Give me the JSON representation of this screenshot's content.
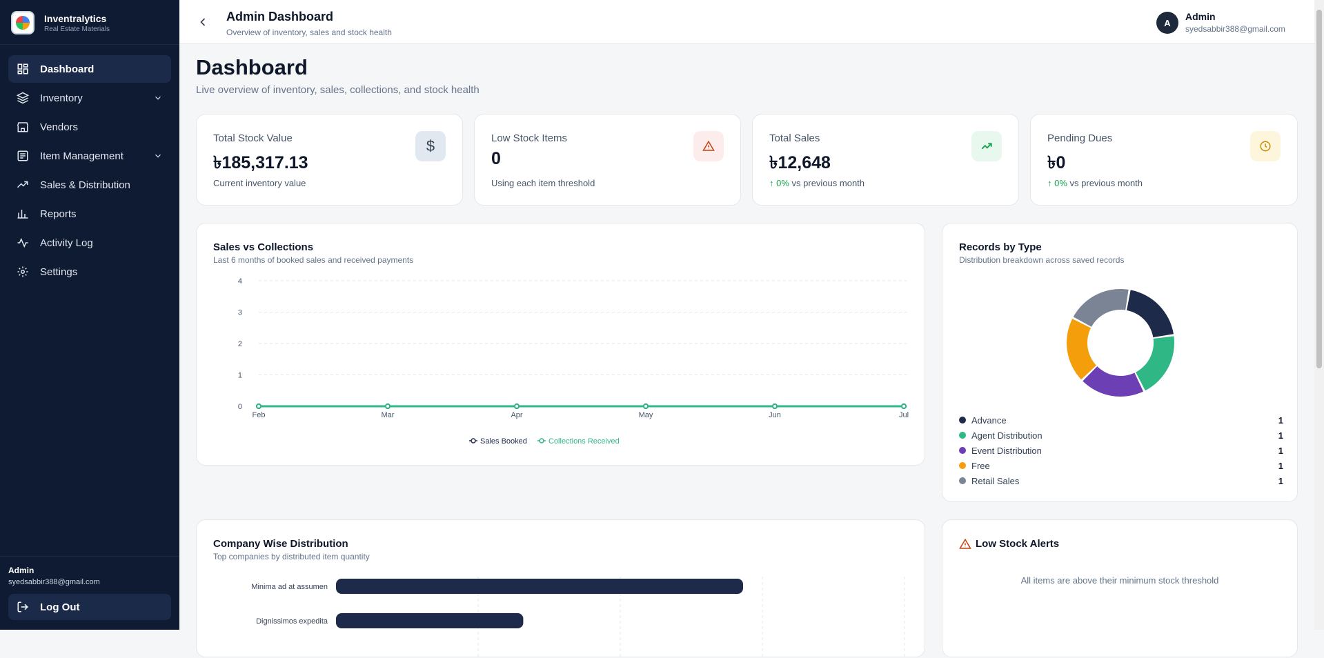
{
  "brand": {
    "name": "Inventralytics",
    "sub": "Real Estate Materials"
  },
  "nav": [
    {
      "label": "Dashboard",
      "icon": "dashboard-icon",
      "active": true
    },
    {
      "label": "Inventory",
      "icon": "layers-icon",
      "chevron": true
    },
    {
      "label": "Vendors",
      "icon": "store-icon"
    },
    {
      "label": "Item Management",
      "icon": "list-icon",
      "chevron": true
    },
    {
      "label": "Sales & Distribution",
      "icon": "trending-icon"
    },
    {
      "label": "Reports",
      "icon": "bar-chart-icon"
    },
    {
      "label": "Activity Log",
      "icon": "activity-icon"
    },
    {
      "label": "Settings",
      "icon": "gear-icon"
    }
  ],
  "sidebar_user": {
    "name": "Admin",
    "email": "syedsabbir388@gmail.com",
    "logout": "Log Out"
  },
  "topbar": {
    "title": "Admin Dashboard",
    "subtitle": "Overview of inventory, sales and stock health",
    "avatar": "A",
    "user_name": "Admin",
    "user_email": "syedsabbir388@gmail.com"
  },
  "page": {
    "title": "Dashboard",
    "subtitle": "Live overview of inventory, sales, collections, and stock health"
  },
  "stats": [
    {
      "label": "Total Stock Value",
      "value": "৳185,317.13",
      "note": "Current inventory value",
      "icon": "dollar-icon",
      "color": "#334155"
    },
    {
      "label": "Low Stock Items",
      "value": "0",
      "note": "Using each item threshold",
      "icon": "warning-icon",
      "color": "#c2410c"
    },
    {
      "label": "Total Sales",
      "value": "৳12,648",
      "note_up": "↑ 0%",
      "note": "vs previous month",
      "icon": "trending-up-icon",
      "color": "#16a34a"
    },
    {
      "label": "Pending Dues",
      "value": "৳0",
      "note_up": "↑ 0%",
      "note": "vs previous month",
      "icon": "clock-icon",
      "color": "#ca8a04"
    }
  ],
  "sales_chart": {
    "title": "Sales vs Collections",
    "subtitle": "Last 6 months of booked sales and received payments",
    "legend": [
      "Sales Booked",
      "Collections Received"
    ]
  },
  "records": {
    "title": "Records by Type",
    "subtitle": "Distribution breakdown across saved records",
    "items": [
      {
        "name": "Advance",
        "count": "1",
        "color": "#1e2a4a"
      },
      {
        "name": "Agent Distribution",
        "count": "1",
        "color": "#2fb886"
      },
      {
        "name": "Event Distribution",
        "count": "1",
        "color": "#6d3fb5"
      },
      {
        "name": "Free",
        "count": "1",
        "color": "#f59e0b"
      },
      {
        "name": "Retail Sales",
        "count": "1",
        "color": "#7b8494"
      }
    ]
  },
  "company": {
    "title": "Company Wise Distribution",
    "subtitle": "Top companies by distributed item quantity"
  },
  "alerts": {
    "title": "Low Stock Alerts",
    "message": "All items are above their minimum stock threshold"
  },
  "chart_data": [
    {
      "type": "line",
      "x": [
        "Feb",
        "Mar",
        "Apr",
        "May",
        "Jun",
        "Jul"
      ],
      "ylim": [
        0,
        4
      ],
      "yticks": [
        "0",
        "1",
        "2",
        "3",
        "4"
      ],
      "series": [
        {
          "name": "Sales Booked",
          "values": [
            0,
            0,
            0,
            0,
            0,
            0
          ],
          "color": "#1e2a4a"
        },
        {
          "name": "Collections Received",
          "values": [
            0,
            0,
            0,
            0,
            0,
            0
          ],
          "color": "#2fb886"
        }
      ],
      "grid": true,
      "legend": "bottom"
    },
    {
      "type": "pie",
      "categories": [
        "Advance",
        "Agent Distribution",
        "Event Distribution",
        "Free",
        "Retail Sales"
      ],
      "values": [
        1,
        1,
        1,
        1,
        1
      ],
      "colors": [
        "#1e2a4a",
        "#2fb886",
        "#6d3fb5",
        "#f59e0b",
        "#7b8494"
      ]
    },
    {
      "type": "bar",
      "orientation": "horizontal",
      "categories": [
        "Minima ad at assumen",
        "Dignissimos expedita"
      ],
      "values": [
        100,
        46
      ]
    }
  ]
}
